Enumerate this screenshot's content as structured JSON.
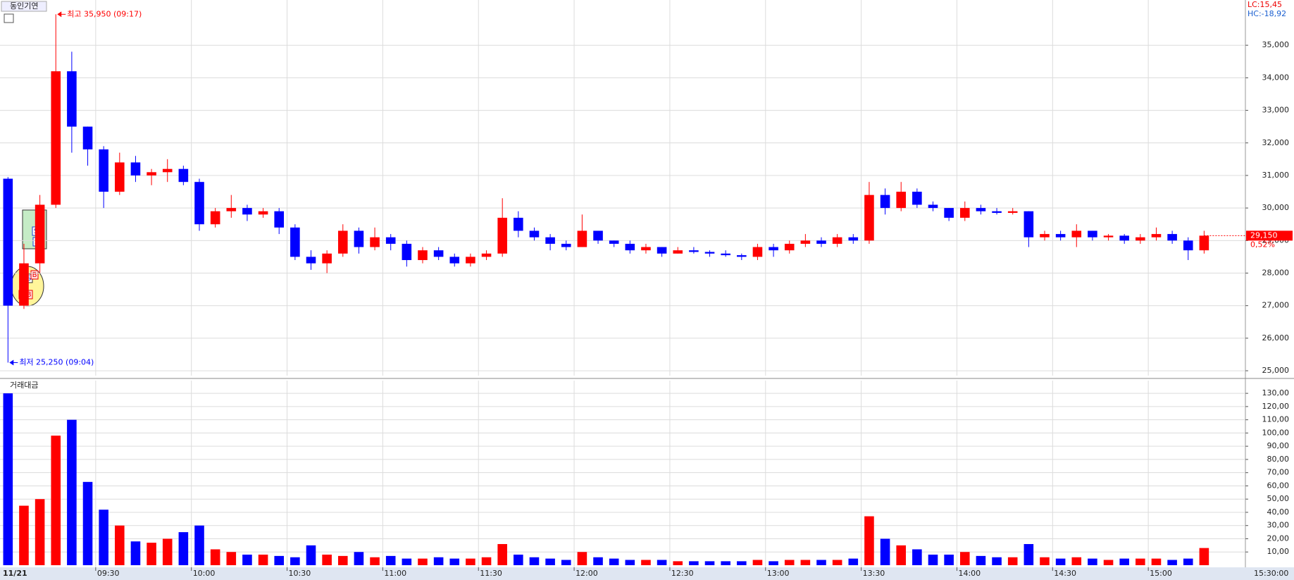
{
  "chart_data": [
    {
      "type": "candlestick",
      "title": "동인기연",
      "categories": [
        "09:00",
        "09:05",
        "09:10",
        "09:15",
        "09:20",
        "09:25",
        "09:30",
        "09:35",
        "09:40",
        "09:45",
        "09:50",
        "09:55",
        "10:00",
        "10:05",
        "10:10",
        "10:15",
        "10:20",
        "10:25",
        "10:30",
        "10:35",
        "10:40",
        "10:45",
        "10:50",
        "10:55",
        "11:00",
        "11:05",
        "11:10",
        "11:15",
        "11:20",
        "11:25",
        "11:30",
        "11:35",
        "11:40",
        "11:45",
        "11:50",
        "11:55",
        "12:00",
        "12:05",
        "12:10",
        "12:15",
        "12:20",
        "12:25",
        "12:30",
        "12:35",
        "12:40",
        "12:45",
        "12:50",
        "12:55",
        "13:00",
        "13:05",
        "13:10",
        "13:15",
        "13:20",
        "13:25",
        "13:30",
        "13:35",
        "13:40",
        "13:45",
        "13:50",
        "13:55",
        "14:00",
        "14:05",
        "14:10",
        "14:15",
        "14:20",
        "14:25",
        "14:30",
        "14:35",
        "14:40",
        "14:45",
        "14:50",
        "14:55",
        "15:00",
        "15:05",
        "15:10",
        "15:15"
      ],
      "open": [
        30900,
        27000,
        28300,
        30100,
        34200,
        32500,
        31800,
        30500,
        31400,
        31000,
        31100,
        31200,
        30800,
        29500,
        29900,
        30000,
        29800,
        29900,
        29400,
        28500,
        28300,
        28600,
        29300,
        28800,
        29100,
        28900,
        28400,
        28700,
        28500,
        28300,
        28500,
        28600,
        29700,
        29300,
        29100,
        28900,
        28800,
        29300,
        29000,
        28900,
        28700,
        28800,
        28600,
        28700,
        28650,
        28600,
        28550,
        28500,
        28800,
        28700,
        28900,
        29000,
        28900,
        29100,
        29000,
        30400,
        30000,
        30500,
        30100,
        30000,
        29700,
        30000,
        29900,
        29850,
        29900,
        29100,
        29200,
        29100,
        29300,
        29100,
        29150,
        29000,
        29100,
        29200,
        29000,
        28700
      ],
      "high": [
        30950,
        28900,
        30400,
        35950,
        34800,
        32500,
        31900,
        31700,
        31600,
        31200,
        31500,
        31300,
        30900,
        30000,
        30400,
        30100,
        30000,
        30000,
        29500,
        28700,
        28700,
        29500,
        29400,
        29400,
        29200,
        29000,
        28800,
        28800,
        28600,
        28600,
        28700,
        30300,
        29900,
        29400,
        29200,
        29000,
        29800,
        29300,
        29000,
        29000,
        28900,
        28800,
        28800,
        28800,
        28700,
        28700,
        28600,
        28900,
        28900,
        29000,
        29200,
        29100,
        29200,
        29200,
        30800,
        30600,
        30800,
        30600,
        30200,
        30000,
        30200,
        30100,
        30000,
        30000,
        29900,
        29300,
        29300,
        29500,
        29300,
        29200,
        29200,
        29200,
        29400,
        29300,
        29100,
        29300
      ],
      "low": [
        25250,
        26900,
        28000,
        30000,
        31700,
        31300,
        30000,
        30400,
        30800,
        30700,
        30800,
        30700,
        29300,
        29400,
        29700,
        29600,
        29700,
        29200,
        28400,
        28100,
        28000,
        28500,
        28600,
        28700,
        28700,
        28200,
        28300,
        28400,
        28200,
        28200,
        28400,
        28500,
        29100,
        29000,
        28700,
        28700,
        28800,
        28900,
        28800,
        28600,
        28600,
        28500,
        28600,
        28600,
        28500,
        28500,
        28400,
        28400,
        28500,
        28600,
        28800,
        28800,
        28800,
        28900,
        28900,
        29800,
        29900,
        30000,
        29900,
        29600,
        29600,
        29800,
        29800,
        29800,
        28800,
        29000,
        29000,
        28800,
        29000,
        29000,
        28900,
        28900,
        29000,
        28900,
        28400,
        28600
      ],
      "close": [
        27000,
        28300,
        30100,
        34200,
        32500,
        31800,
        30500,
        31400,
        31000,
        31100,
        31200,
        30800,
        29500,
        29900,
        30000,
        29800,
        29900,
        29400,
        28500,
        28300,
        28600,
        29300,
        28800,
        29100,
        28900,
        28400,
        28700,
        28500,
        28300,
        28500,
        28600,
        29700,
        29300,
        29100,
        28900,
        28800,
        29300,
        29000,
        28900,
        28700,
        28800,
        28600,
        28700,
        28650,
        28600,
        28550,
        28500,
        28800,
        28700,
        28900,
        29000,
        28900,
        29100,
        29000,
        30400,
        30000,
        30500,
        30100,
        30000,
        29700,
        30000,
        29900,
        29850,
        29900,
        29100,
        29200,
        29100,
        29300,
        29100,
        29150,
        29000,
        29100,
        29200,
        29000,
        28700,
        29150
      ],
      "up_color": "#ff0000",
      "down_color": "#0000ff",
      "ylim": [
        24850,
        36000
      ],
      "yticks": [
        {
          "value": 25000,
          "label": "25,000"
        },
        {
          "value": 26000,
          "label": "26,000"
        },
        {
          "value": 27000,
          "label": "27,000"
        },
        {
          "value": 28000,
          "label": "28,000"
        },
        {
          "value": 29000,
          "label": "29,000"
        },
        {
          "value": 30000,
          "label": "30,000"
        },
        {
          "value": 31000,
          "label": "31,000"
        },
        {
          "value": 32000,
          "label": "32,000"
        },
        {
          "value": 33000,
          "label": "33,000"
        },
        {
          "value": 34000,
          "label": "34,000"
        },
        {
          "value": 35000,
          "label": "35,000"
        }
      ],
      "xticks": [
        "09:30",
        "10:00",
        "10:30",
        "11:00",
        "11:30",
        "12:00",
        "12:30",
        "13:00",
        "13:30",
        "14:00",
        "14:30",
        "15:00"
      ],
      "date_label": "11/21",
      "last_time_label": "15:30:00",
      "high_annotation": {
        "value": 35950,
        "index": 3,
        "text": "최고 35,950 (09:17)"
      },
      "low_annotation": {
        "value": 25250,
        "index": 0,
        "text": "최저 25,250 (09:04)"
      },
      "current_price": {
        "value": 29150,
        "label": "29,150"
      },
      "change_label": "0,52%",
      "lc_label": "LC:15,45",
      "hc_label": "HC:-18,92",
      "sell_marker": "S",
      "buy_marker": "B",
      "grid": true
    },
    {
      "type": "bar",
      "title": "거래대금",
      "values": [
        130,
        45,
        50,
        98,
        110,
        63,
        42,
        30,
        18,
        17,
        20,
        25,
        30,
        12,
        10,
        8,
        8,
        7,
        6,
        15,
        8,
        7,
        10,
        6,
        7,
        5,
        5,
        6,
        5,
        5,
        6,
        16,
        8,
        6,
        5,
        4,
        10,
        6,
        5,
        4,
        4,
        4,
        3,
        3,
        3,
        3,
        3,
        4,
        3,
        4,
        4,
        4,
        4,
        5,
        37,
        20,
        15,
        12,
        8,
        8,
        10,
        7,
        6,
        6,
        16,
        6,
        5,
        6,
        5,
        4,
        5,
        5,
        5,
        4,
        5,
        13
      ],
      "ylim": [
        0,
        137
      ],
      "yticks": [
        {
          "value": 10,
          "label": "10,00"
        },
        {
          "value": 20,
          "label": "20,00"
        },
        {
          "value": 30,
          "label": "30,00"
        },
        {
          "value": 40,
          "label": "40,00"
        },
        {
          "value": 50,
          "label": "50,00"
        },
        {
          "value": 60,
          "label": "60,00"
        },
        {
          "value": 70,
          "label": "70,00"
        },
        {
          "value": 80,
          "label": "80,00"
        },
        {
          "value": 90,
          "label": "90,00"
        },
        {
          "value": 100,
          "label": "100,00"
        },
        {
          "value": 110,
          "label": "110,00"
        },
        {
          "value": 120,
          "label": "120,00"
        },
        {
          "value": 130,
          "label": "130,00"
        }
      ],
      "grid": true
    }
  ]
}
